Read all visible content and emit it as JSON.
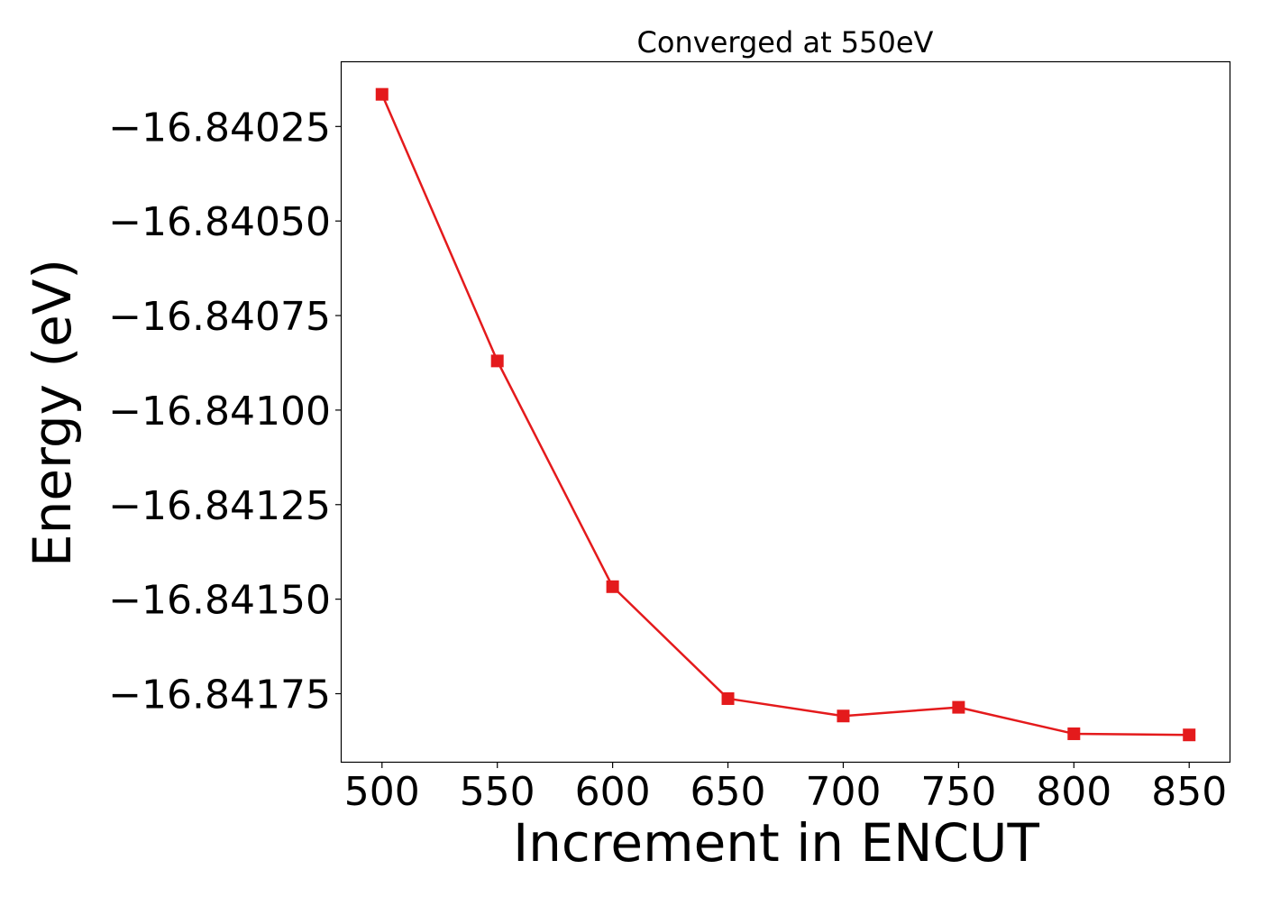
{
  "chart_data": {
    "type": "line",
    "title": "Converged at 550eV",
    "xlabel": "Increment in ENCUT",
    "ylabel": "Energy (eV)",
    "x": [
      500,
      550,
      600,
      650,
      700,
      750,
      800,
      850
    ],
    "series": [
      {
        "values": [
          -16.840165,
          -16.84087,
          -16.841467,
          -16.841763,
          -16.841809,
          -16.841786,
          -16.841856,
          -16.841859
        ],
        "color": "#e41a1c",
        "marker": "square"
      }
    ],
    "x_ticks": [
      "500",
      "550",
      "600",
      "650",
      "700",
      "750",
      "800",
      "850"
    ],
    "y_ticks": [
      -16.84025,
      -16.8405,
      -16.84075,
      -16.841,
      -16.84125,
      -16.8415,
      -16.84175
    ],
    "y_tick_labels": [
      "−16.84025",
      "−16.84050",
      "−16.84075",
      "−16.84100",
      "−16.84125",
      "−16.84150",
      "−16.84175"
    ],
    "xlim": [
      482.5,
      867.5
    ],
    "ylim": [
      -16.84193,
      -16.84008
    ],
    "grid": false,
    "legend": false
  }
}
